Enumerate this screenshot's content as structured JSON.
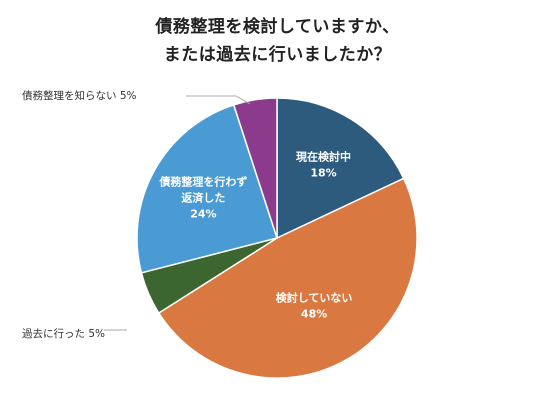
{
  "chart_data": {
    "type": "pie",
    "title_lines": [
      "債務整理を検討していますか、",
      "または過去に行いましたか？"
    ],
    "slices": [
      {
        "name": "現在検討中",
        "value": 18,
        "label_lines": [
          "現在検討中"
        ],
        "value_label": "18%",
        "color": "#2d5b7e",
        "label_pos": "inside"
      },
      {
        "name": "検討していない",
        "value": 48,
        "label_lines": [
          "検討していない"
        ],
        "value_label": "48%",
        "color": "#d97840",
        "label_pos": "inside"
      },
      {
        "name": "過去に行った",
        "value": 5,
        "label_lines": [
          "過去に行った 5%"
        ],
        "value_label": "",
        "color": "#3c6630",
        "label_pos": "outside"
      },
      {
        "name": "債務整理を行わず返済した",
        "value": 24,
        "label_lines": [
          "債務整理を行わず",
          "返済した"
        ],
        "value_label": "24%",
        "color": "#4a9ad4",
        "label_pos": "inside"
      },
      {
        "name": "債務整理を知らない",
        "value": 5,
        "label_lines": [
          "債務整理を知らない 5%"
        ],
        "value_label": "",
        "color": "#8c3a8c",
        "label_pos": "outside"
      }
    ],
    "start_angle_deg": 0,
    "direction": "clockwise",
    "legend": "none"
  }
}
